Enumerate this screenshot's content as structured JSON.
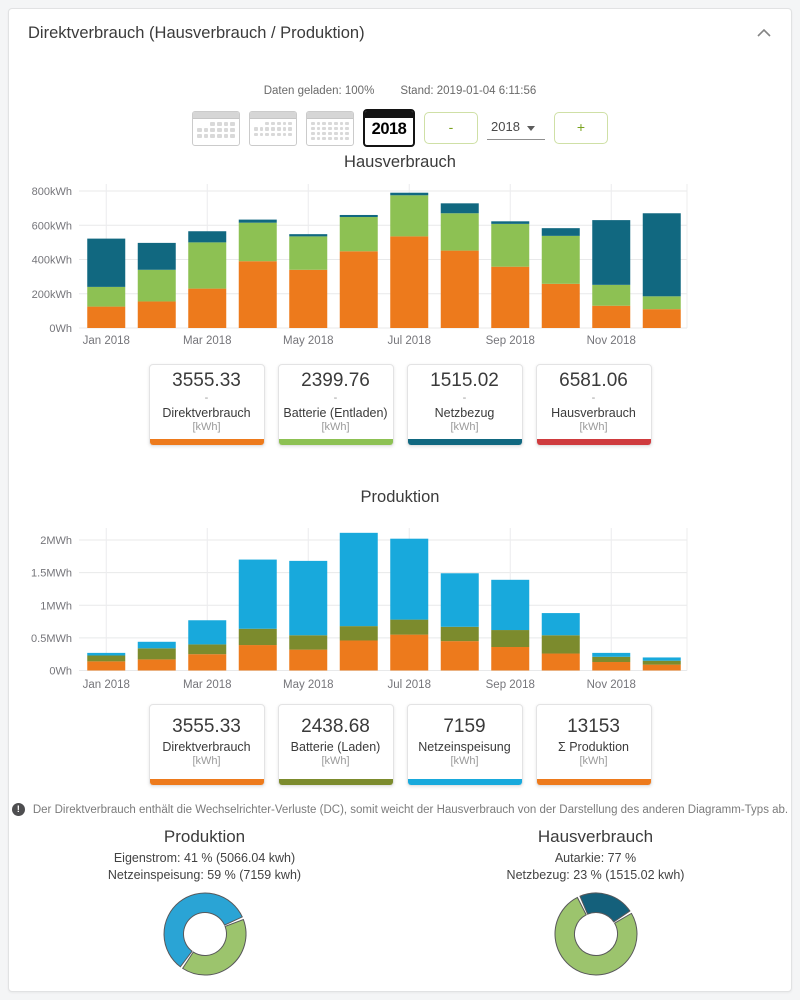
{
  "panel": {
    "title": "Direktverbrauch (Hausverbrauch / Produktion)"
  },
  "status": {
    "loaded": "Daten geladen: 100%",
    "stand": "Stand: 2019-01-04 6:11:56"
  },
  "toolbar": {
    "day_view_icon": "day-calendar",
    "month_view_icon": "month-calendar",
    "year_view_icon": "year-calendar",
    "selected_year": "2018",
    "minus": "-",
    "year_select": "2018",
    "plus": "+"
  },
  "note": {
    "icon": "!",
    "text": "Der Direktverbrauch enthält die Wechselrichter-Verluste (DC), somit weicht der Hausverbrauch von der Darstellung des anderen Diagramm-Typs ab."
  },
  "stat_rows": [
    {
      "cards": [
        {
          "value": "3555.33",
          "dash": "-",
          "label": "Direktverbrauch",
          "unit": "[kWh]",
          "color": "#ED7A1C"
        },
        {
          "value": "2399.76",
          "dash": "-",
          "label": "Batterie (Entladen)",
          "unit": "[kWh]",
          "color": "#8DC153"
        },
        {
          "value": "1515.02",
          "dash": "-",
          "label": "Netzbezug",
          "unit": "[kWh]",
          "color": "#116880"
        },
        {
          "value": "6581.06",
          "dash": "-",
          "label": "Hausverbrauch",
          "unit": "[kWh]",
          "color": "#CF3B3E"
        }
      ]
    },
    {
      "cards": [
        {
          "value": "3555.33",
          "label": "Direktverbrauch",
          "unit": "[kWh]",
          "color": "#ED7A1C"
        },
        {
          "value": "2438.68",
          "label": "Batterie (Laden)",
          "unit": "[kWh]",
          "color": "#7C8B2D"
        },
        {
          "value": "7159",
          "label": "Netzeinspeisung",
          "unit": "[kWh]",
          "color": "#18A9DC"
        },
        {
          "value": "13153",
          "label": "Σ Produktion",
          "unit": "[kWh]",
          "color": "#ED7A1C"
        }
      ]
    }
  ],
  "donut_summaries": {
    "left": {
      "title": "Produktion",
      "line1": "Eigenstrom: 41 % (5066.04 kwh)",
      "line2": "Netzeinspeisung: 59 % (7159 kwh)"
    },
    "right": {
      "title": "Hausverbrauch",
      "line1": "Autarkie: 77 %",
      "line2": "Netzbezug: 23 % (1515.02 kwh)"
    }
  },
  "chart_data": [
    {
      "type": "bar",
      "title": "Hausverbrauch",
      "stacked": true,
      "unit": "kWh",
      "y_max": 800,
      "y_ticks": [
        {
          "label": "0Wh",
          "value": 0
        },
        {
          "label": "200kWh",
          "value": 200
        },
        {
          "label": "400kWh",
          "value": 400
        },
        {
          "label": "600kWh",
          "value": 600
        },
        {
          "label": "800kWh",
          "value": 800
        }
      ],
      "categories": [
        "Jan 2018",
        "Feb 2018",
        "Mar 2018",
        "Apr 2018",
        "May 2018",
        "Jun 2018",
        "Jul 2018",
        "Aug 2018",
        "Sep 2018",
        "Oct 2018",
        "Nov 2018",
        "Dec 2018"
      ],
      "x_ticks": [
        {
          "index": 0,
          "label": "Jan 2018"
        },
        {
          "index": 2,
          "label": "Mar 2018"
        },
        {
          "index": 4,
          "label": "May 2018"
        },
        {
          "index": 6,
          "label": "Jul 2018"
        },
        {
          "index": 8,
          "label": "Sep 2018"
        },
        {
          "index": 10,
          "label": "Nov 2018"
        }
      ],
      "series": [
        {
          "name": "Direktverbrauch",
          "color": "#ED7A1C",
          "values": [
            125,
            155,
            230,
            390,
            340,
            448,
            535,
            452,
            358,
            258,
            130,
            110
          ]
        },
        {
          "name": "Batterie (Entladen)",
          "color": "#8DC153",
          "values": [
            115,
            185,
            270,
            225,
            195,
            200,
            240,
            218,
            250,
            280,
            122,
            75
          ]
        },
        {
          "name": "Netzbezug",
          "color": "#116880",
          "values": [
            282,
            157,
            65,
            18,
            13,
            12,
            15,
            58,
            15,
            45,
            378,
            485
          ]
        }
      ]
    },
    {
      "type": "bar",
      "title": "Produktion",
      "stacked": true,
      "unit": "MWh",
      "y_max": 2,
      "y_ticks": [
        {
          "label": "0Wh",
          "value": 0
        },
        {
          "label": "0.5MWh",
          "value": 0.5
        },
        {
          "label": "1MWh",
          "value": 1
        },
        {
          "label": "1.5MWh",
          "value": 1.5
        },
        {
          "label": "2MWh",
          "value": 2
        }
      ],
      "categories": [
        "Jan 2018",
        "Feb 2018",
        "Mar 2018",
        "Apr 2018",
        "May 2018",
        "Jun 2018",
        "Jul 2018",
        "Aug 2018",
        "Sep 2018",
        "Oct 2018",
        "Nov 2018",
        "Dec 2018"
      ],
      "x_ticks": [
        {
          "index": 0,
          "label": "Jan 2018"
        },
        {
          "index": 2,
          "label": "Mar 2018"
        },
        {
          "index": 4,
          "label": "May 2018"
        },
        {
          "index": 6,
          "label": "Jul 2018"
        },
        {
          "index": 8,
          "label": "Sep 2018"
        },
        {
          "index": 10,
          "label": "Nov 2018"
        }
      ],
      "series": [
        {
          "name": "Direktverbrauch",
          "color": "#ED7A1C",
          "values": [
            0.14,
            0.17,
            0.25,
            0.39,
            0.32,
            0.46,
            0.55,
            0.45,
            0.36,
            0.26,
            0.13,
            0.09
          ]
        },
        {
          "name": "Batterie (Laden)",
          "color": "#7C8B2D",
          "values": [
            0.09,
            0.17,
            0.15,
            0.25,
            0.22,
            0.22,
            0.23,
            0.22,
            0.26,
            0.28,
            0.08,
            0.06
          ]
        },
        {
          "name": "Netzeinspeisung",
          "color": "#18A9DC",
          "values": [
            0.04,
            0.1,
            0.37,
            1.06,
            1.14,
            1.43,
            1.24,
            0.82,
            0.77,
            0.34,
            0.06,
            0.05
          ]
        }
      ]
    },
    {
      "type": "pie",
      "title": "Produktion",
      "rotation_deg": 215,
      "slices": [
        {
          "label": "Netzeinspeisung",
          "percent": 59,
          "color": "#2AA4D5"
        },
        {
          "label": "Eigenstrom",
          "percent": 41,
          "color": "#9CC46D"
        }
      ]
    },
    {
      "type": "pie",
      "title": "Hausverbrauch",
      "rotation_deg": 335,
      "slices": [
        {
          "label": "Netzbezug",
          "percent": 23,
          "color": "#14607B"
        },
        {
          "label": "Autarkie",
          "percent": 77,
          "color": "#9CC46D"
        }
      ]
    }
  ]
}
